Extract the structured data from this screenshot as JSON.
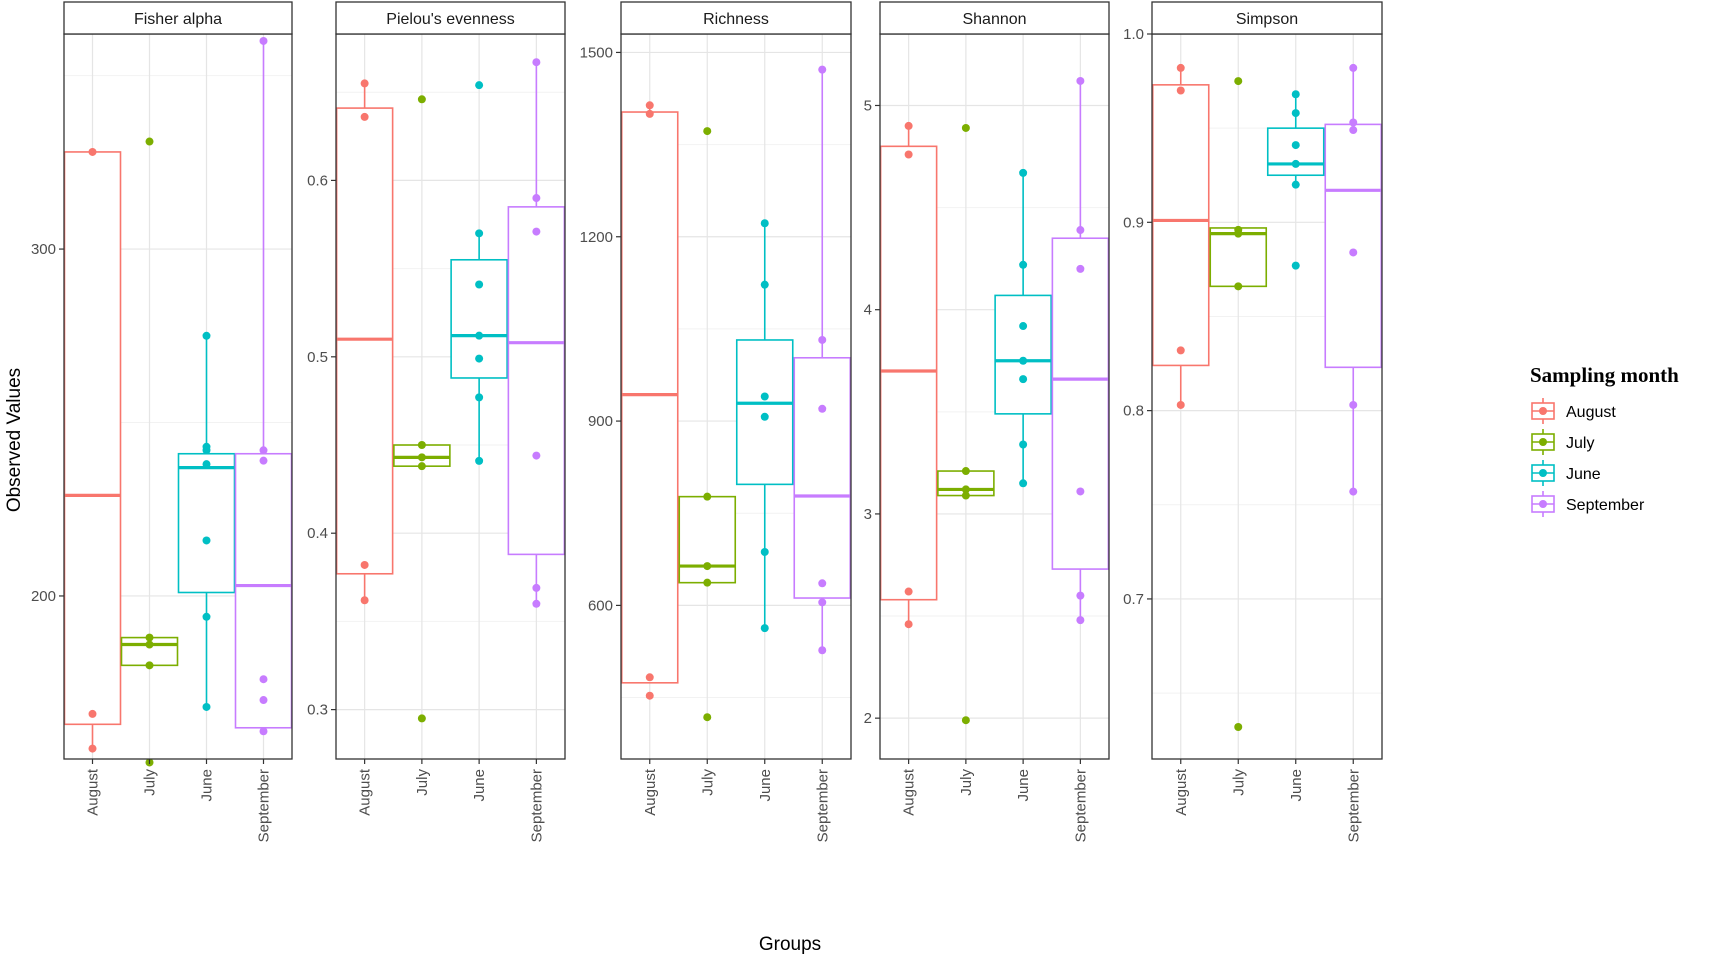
{
  "chart_data": {
    "type": "box",
    "xlabel": "Groups",
    "ylabel": "Observed Values",
    "categories": [
      "August",
      "July",
      "June",
      "September"
    ],
    "legend": {
      "title": "Sampling month",
      "placement": "right",
      "entries": [
        "August",
        "July",
        "June",
        "September"
      ]
    },
    "colors": {
      "August": "#F8766D",
      "July": "#7CAE00",
      "June": "#00BFC4",
      "September": "#C77CFF",
      "panel_border": "#333333",
      "strip_fill": "#ffffff",
      "grid_major": "#e5e5e5",
      "grid_minor": "#f2f2f2",
      "axis_text": "#4d4d4d"
    },
    "panels": [
      {
        "title": "Fisher alpha",
        "ylim": [
          153,
          362
        ],
        "yticks": [
          200,
          300
        ],
        "yticklabels": [
          "200",
          "300"
        ],
        "minor_yticks": [
          250,
          350
        ],
        "groups": [
          {
            "category": "August",
            "q1": 163,
            "median": 229,
            "q3": 328,
            "whisker_low": 156,
            "whisker_high": 328,
            "points": [
              156,
              166,
              328
            ]
          },
          {
            "category": "July",
            "q1": 180,
            "median": 186,
            "q3": 188,
            "whisker_low": 180,
            "whisker_high": 188,
            "points": [
              152,
              180,
              186,
              188,
              331
            ]
          },
          {
            "category": "June",
            "q1": 201,
            "median": 237,
            "q3": 241,
            "whisker_low": 168,
            "whisker_high": 275,
            "points": [
              168,
              194,
              216,
              238,
              242,
              243,
              275
            ]
          },
          {
            "category": "September",
            "q1": 162,
            "median": 203,
            "q3": 241,
            "whisker_low": 161,
            "whisker_high": 360,
            "points": [
              161,
              170,
              176,
              239,
              242,
              360
            ]
          }
        ]
      },
      {
        "title": "Pielou's evenness",
        "ylim": [
          0.272,
          0.683
        ],
        "yticks": [
          0.3,
          0.4,
          0.5,
          0.6
        ],
        "yticklabels": [
          "0.3",
          "0.4",
          "0.5",
          "0.6"
        ],
        "minor_yticks": [
          0.35,
          0.45,
          0.55,
          0.65
        ],
        "groups": [
          {
            "category": "August",
            "q1": 0.377,
            "median": 0.51,
            "q3": 0.641,
            "whisker_low": 0.362,
            "whisker_high": 0.655,
            "points": [
              0.362,
              0.382,
              0.636,
              0.655
            ]
          },
          {
            "category": "July",
            "q1": 0.438,
            "median": 0.443,
            "q3": 0.45,
            "whisker_low": 0.438,
            "whisker_high": 0.45,
            "points": [
              0.295,
              0.438,
              0.443,
              0.45,
              0.646
            ]
          },
          {
            "category": "June",
            "q1": 0.488,
            "median": 0.512,
            "q3": 0.555,
            "whisker_low": 0.441,
            "whisker_high": 0.57,
            "points": [
              0.441,
              0.477,
              0.499,
              0.512,
              0.541,
              0.57,
              0.654
            ]
          },
          {
            "category": "September",
            "q1": 0.388,
            "median": 0.508,
            "q3": 0.585,
            "whisker_low": 0.36,
            "whisker_high": 0.667,
            "points": [
              0.36,
              0.369,
              0.444,
              0.571,
              0.59,
              0.667
            ]
          }
        ]
      },
      {
        "title": "Richness",
        "ylim": [
          350,
          1530
        ],
        "yticks": [
          600,
          900,
          1200,
          1500
        ],
        "yticklabels": [
          "600",
          "900",
          "1200",
          "1500"
        ],
        "minor_yticks": [
          450,
          750,
          1050,
          1350
        ],
        "groups": [
          {
            "category": "August",
            "q1": 474,
            "median": 943,
            "q3": 1403,
            "whisker_low": 474,
            "whisker_high": 1414,
            "points": [
              453,
              483,
              1400,
              1414
            ]
          },
          {
            "category": "July",
            "q1": 637,
            "median": 664,
            "q3": 777,
            "whisker_low": 637,
            "whisker_high": 777,
            "points": [
              418,
              637,
              664,
              777,
              1372
            ]
          },
          {
            "category": "June",
            "q1": 797,
            "median": 929,
            "q3": 1032,
            "whisker_low": 563,
            "whisker_high": 1222,
            "points": [
              563,
              687,
              907,
              940,
              1122,
              1222
            ]
          },
          {
            "category": "September",
            "q1": 612,
            "median": 778,
            "q3": 1003,
            "whisker_low": 527,
            "whisker_high": 1472,
            "points": [
              527,
              605,
              636,
              920,
              1032,
              1472
            ]
          }
        ]
      },
      {
        "title": "Shannon",
        "ylim": [
          1.8,
          5.35
        ],
        "yticks": [
          2,
          3,
          4,
          5
        ],
        "yticklabels": [
          "2",
          "3",
          "4",
          "5"
        ],
        "minor_yticks": [
          2.5,
          3.5,
          4.5
        ],
        "groups": [
          {
            "category": "August",
            "q1": 2.58,
            "median": 3.7,
            "q3": 4.8,
            "whisker_low": 2.46,
            "whisker_high": 4.9,
            "points": [
              2.46,
              2.62,
              4.76,
              4.9
            ]
          },
          {
            "category": "July",
            "q1": 3.09,
            "median": 3.12,
            "q3": 3.21,
            "whisker_low": 3.09,
            "whisker_high": 3.21,
            "points": [
              1.99,
              3.09,
              3.12,
              3.21,
              4.89
            ]
          },
          {
            "category": "June",
            "q1": 3.49,
            "median": 3.75,
            "q3": 4.07,
            "whisker_low": 3.15,
            "whisker_high": 4.67,
            "points": [
              3.15,
              3.34,
              3.66,
              3.75,
              3.92,
              4.22,
              4.67
            ]
          },
          {
            "category": "September",
            "q1": 2.73,
            "median": 3.66,
            "q3": 4.35,
            "whisker_low": 2.48,
            "whisker_high": 5.12,
            "points": [
              2.48,
              2.6,
              3.11,
              4.2,
              4.39,
              5.12
            ]
          }
        ]
      },
      {
        "title": "Simpson",
        "ylim": [
          0.615,
          1.0
        ],
        "yticks": [
          0.7,
          0.8,
          0.9,
          1.0
        ],
        "yticklabels": [
          "0.7",
          "0.8",
          "0.9",
          "1.0"
        ],
        "minor_yticks": [
          0.65,
          0.75,
          0.85,
          0.95
        ],
        "groups": [
          {
            "category": "August",
            "q1": 0.824,
            "median": 0.901,
            "q3": 0.973,
            "whisker_low": 0.803,
            "whisker_high": 0.982,
            "points": [
              0.803,
              0.832,
              0.97,
              0.982
            ]
          },
          {
            "category": "July",
            "q1": 0.866,
            "median": 0.894,
            "q3": 0.897,
            "whisker_low": 0.866,
            "whisker_high": 0.897,
            "points": [
              0.632,
              0.866,
              0.894,
              0.896,
              0.975
            ]
          },
          {
            "category": "June",
            "q1": 0.925,
            "median": 0.931,
            "q3": 0.95,
            "whisker_low": 0.92,
            "whisker_high": 0.968,
            "points": [
              0.877,
              0.92,
              0.931,
              0.941,
              0.958,
              0.968
            ]
          },
          {
            "category": "September",
            "q1": 0.823,
            "median": 0.917,
            "q3": 0.952,
            "whisker_low": 0.757,
            "whisker_high": 0.982,
            "points": [
              0.757,
              0.803,
              0.884,
              0.949,
              0.953,
              0.982
            ]
          }
        ]
      }
    ]
  }
}
